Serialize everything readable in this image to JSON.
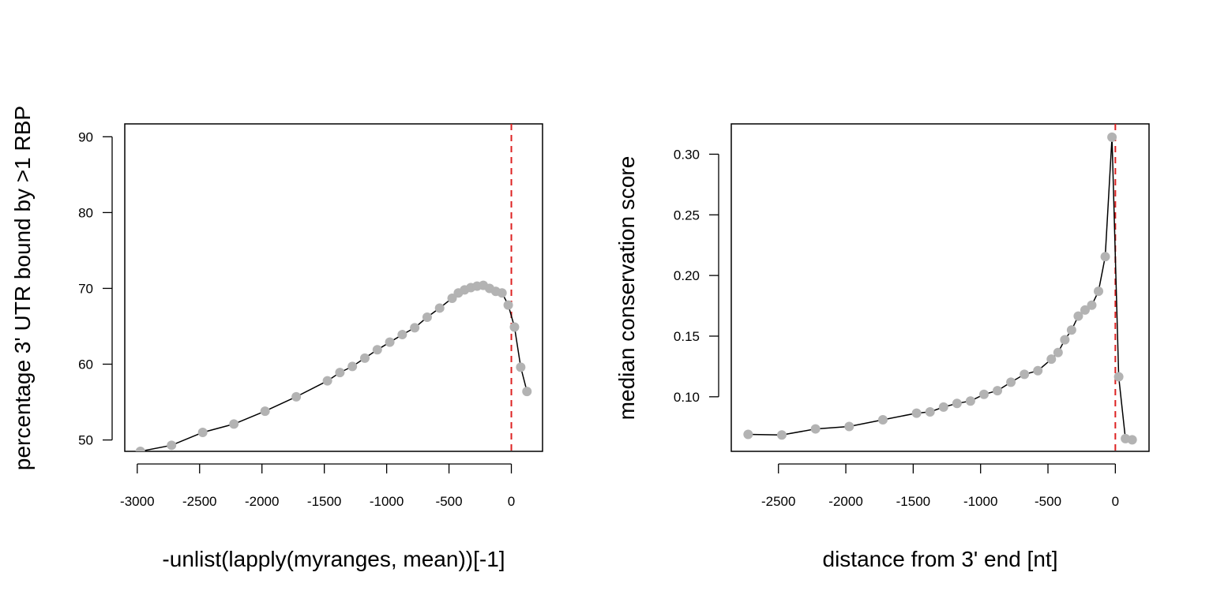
{
  "chart_data": [
    {
      "type": "line",
      "title": "",
      "xlabel": "-unlist(lapply(myranges, mean))[-1]",
      "ylabel": "percentage 3' UTR bound by >1 RBP",
      "xlim": [
        -3100,
        250
      ],
      "ylim": [
        48.5,
        91.7
      ],
      "xticks": [
        -3000,
        -2500,
        -2000,
        -1500,
        -1000,
        -500,
        0
      ],
      "xtick_labels": [
        "-3000",
        "-2500",
        "-2000",
        "-1500",
        "-1000",
        "-500",
        "0"
      ],
      "yticks": [
        50,
        60,
        70,
        80,
        90
      ],
      "ytick_labels": [
        "50",
        "60",
        "70",
        "80",
        "90"
      ],
      "grid": false,
      "vline": {
        "x": 0,
        "color": "#dd2222",
        "style": "dashed"
      },
      "series": [
        {
          "line_color": "#000000",
          "point_color": "#b3b3b3",
          "x": [
            -2975,
            -2725,
            -2475,
            -2225,
            -1975,
            -1725,
            -1475,
            -1375,
            -1275,
            -1175,
            -1075,
            -975,
            -875,
            -775,
            -675,
            -575,
            -475,
            -425,
            -375,
            -325,
            -275,
            -225,
            -175,
            -125,
            -75,
            -25,
            25,
            75,
            125
          ],
          "y": [
            48.5,
            49.3,
            51.0,
            52.1,
            53.8,
            55.7,
            57.8,
            58.9,
            59.7,
            60.8,
            61.9,
            62.9,
            63.9,
            64.8,
            66.2,
            67.4,
            68.7,
            69.4,
            69.8,
            70.1,
            70.3,
            70.4,
            70.0,
            69.6,
            69.4,
            67.8,
            64.9,
            59.6,
            56.4
          ]
        }
      ]
    },
    {
      "type": "line",
      "title": "",
      "xlabel": "distance from 3' end [nt]",
      "ylabel": "median conservation score",
      "xlim": [
        -2850,
        250
      ],
      "ylim": [
        0.055,
        0.325
      ],
      "xticks": [
        -2500,
        -2000,
        -1500,
        -1000,
        -500,
        0
      ],
      "xtick_labels": [
        "-2500",
        "-2000",
        "-1500",
        "-1000",
        "-500",
        "0"
      ],
      "yticks": [
        0.1,
        0.15,
        0.2,
        0.25,
        0.3
      ],
      "ytick_labels": [
        "0.10",
        "0.15",
        "0.20",
        "0.25",
        "0.30"
      ],
      "grid": false,
      "vline": {
        "x": 0,
        "color": "#dd2222",
        "style": "dashed"
      },
      "series": [
        {
          "line_color": "#000000",
          "point_color": "#b3b3b3",
          "x": [
            -2725,
            -2475,
            -2225,
            -1975,
            -1725,
            -1475,
            -1375,
            -1275,
            -1175,
            -1075,
            -975,
            -875,
            -775,
            -675,
            -575,
            -475,
            -425,
            -375,
            -325,
            -275,
            -225,
            -175,
            -125,
            -75,
            -25,
            25,
            75,
            125
          ],
          "y": [
            0.069,
            0.0685,
            0.0735,
            0.0755,
            0.081,
            0.0865,
            0.0875,
            0.0915,
            0.0945,
            0.0965,
            0.102,
            0.105,
            0.112,
            0.1185,
            0.1215,
            0.131,
            0.1365,
            0.147,
            0.155,
            0.1665,
            0.1715,
            0.1755,
            0.187,
            0.2155,
            0.314,
            0.1165,
            0.0655,
            0.0645
          ]
        }
      ]
    }
  ]
}
